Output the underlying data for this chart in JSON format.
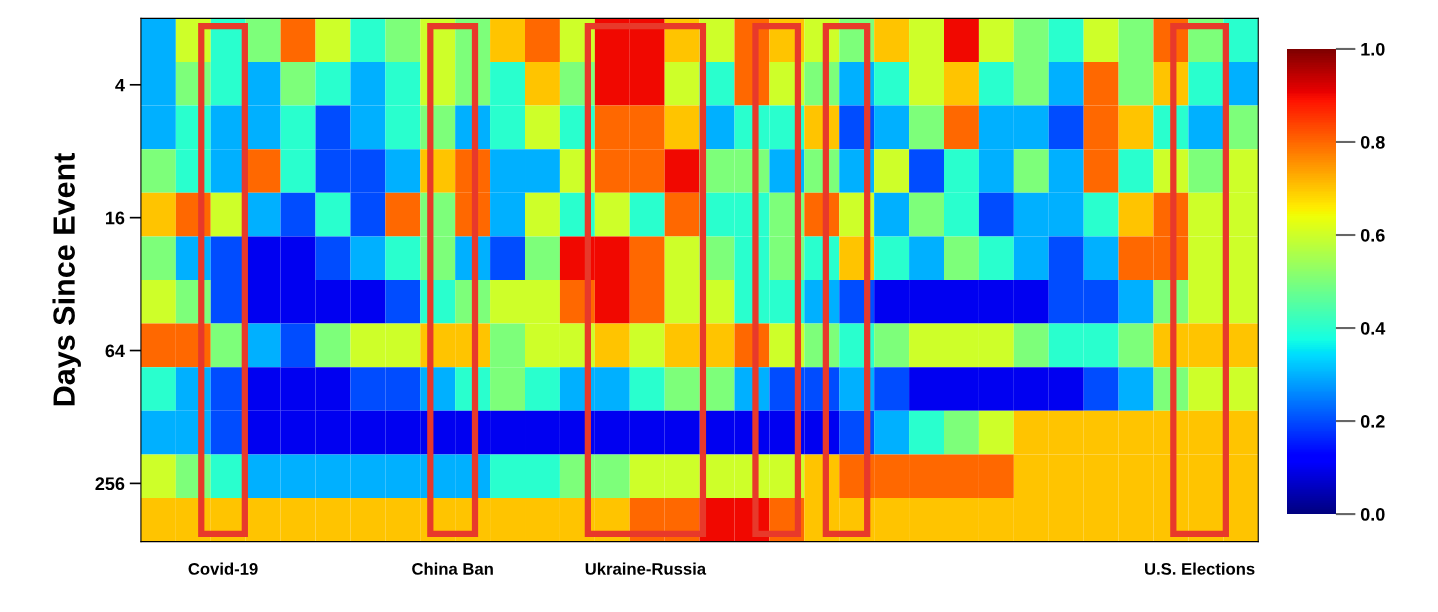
{
  "chart_data": {
    "type": "heatmap",
    "ylabel": "Days Since Event",
    "categories": [
      null,
      null,
      null,
      null,
      null,
      null,
      null,
      null,
      null,
      null,
      null,
      null,
      null,
      null,
      null,
      null,
      null,
      null,
      null,
      null,
      null,
      null,
      null,
      null,
      null,
      null,
      null,
      null,
      null,
      null,
      null,
      null
    ],
    "cells": [
      [
        0.3,
        0.6,
        0.4,
        0.5,
        0.8,
        0.6,
        0.4,
        0.5,
        0.6,
        0.5,
        0.7,
        0.8,
        0.6,
        0.9,
        0.9,
        0.7,
        0.6,
        0.8,
        0.7,
        0.6,
        0.5,
        0.7,
        0.6,
        0.9,
        0.6,
        0.5,
        0.4,
        0.6,
        0.5,
        0.8,
        0.5,
        0.4
      ],
      [
        0.3,
        0.5,
        0.4,
        0.3,
        0.5,
        0.4,
        0.3,
        0.4,
        0.6,
        0.5,
        0.4,
        0.7,
        0.5,
        0.9,
        0.9,
        0.6,
        0.4,
        0.8,
        0.6,
        0.5,
        0.3,
        0.4,
        0.6,
        0.7,
        0.4,
        0.5,
        0.3,
        0.8,
        0.5,
        0.7,
        0.4,
        0.3
      ],
      [
        0.3,
        0.4,
        0.3,
        0.3,
        0.4,
        0.2,
        0.3,
        0.4,
        0.5,
        0.3,
        0.4,
        0.6,
        0.4,
        0.8,
        0.8,
        0.7,
        0.3,
        0.4,
        0.4,
        0.7,
        0.2,
        0.3,
        0.5,
        0.8,
        0.3,
        0.3,
        0.2,
        0.8,
        0.7,
        0.4,
        0.3,
        0.5
      ],
      [
        0.5,
        0.4,
        0.3,
        0.8,
        0.4,
        0.2,
        0.2,
        0.3,
        0.7,
        0.8,
        0.3,
        0.3,
        0.6,
        0.8,
        0.8,
        0.9,
        0.5,
        0.5,
        0.3,
        0.5,
        0.3,
        0.6,
        0.2,
        0.4,
        0.3,
        0.5,
        0.3,
        0.8,
        0.4,
        0.6,
        0.5,
        0.6
      ],
      [
        0.7,
        0.8,
        0.6,
        0.3,
        0.2,
        0.4,
        0.2,
        0.8,
        0.5,
        0.8,
        0.3,
        0.6,
        0.4,
        0.6,
        0.4,
        0.8,
        0.4,
        0.4,
        0.5,
        0.8,
        0.6,
        0.3,
        0.5,
        0.4,
        0.2,
        0.3,
        0.3,
        0.4,
        0.7,
        0.8,
        0.6,
        0.6
      ],
      [
        0.5,
        0.3,
        0.2,
        0.1,
        0.1,
        0.2,
        0.3,
        0.4,
        0.5,
        0.3,
        0.2,
        0.5,
        0.9,
        0.9,
        0.8,
        0.6,
        0.5,
        0.4,
        0.5,
        0.4,
        0.7,
        0.4,
        0.3,
        0.5,
        0.4,
        0.3,
        0.2,
        0.3,
        0.8,
        0.8,
        0.6,
        0.6
      ],
      [
        0.6,
        0.5,
        0.2,
        0.1,
        0.1,
        0.1,
        0.1,
        0.2,
        0.4,
        0.5,
        0.6,
        0.6,
        0.8,
        0.9,
        0.8,
        0.6,
        0.6,
        0.4,
        0.4,
        0.3,
        0.2,
        0.1,
        0.1,
        0.1,
        0.1,
        0.1,
        0.2,
        0.2,
        0.3,
        0.5,
        0.6,
        0.6
      ],
      [
        0.8,
        0.8,
        0.5,
        0.3,
        0.2,
        0.5,
        0.6,
        0.6,
        0.7,
        0.7,
        0.5,
        0.6,
        0.6,
        0.7,
        0.6,
        0.7,
        0.7,
        0.8,
        0.6,
        0.5,
        0.4,
        0.5,
        0.6,
        0.6,
        0.6,
        0.5,
        0.4,
        0.4,
        0.5,
        0.7,
        0.7,
        0.7
      ],
      [
        0.4,
        0.3,
        0.2,
        0.1,
        0.1,
        0.1,
        0.2,
        0.2,
        0.3,
        0.4,
        0.5,
        0.4,
        0.3,
        0.3,
        0.4,
        0.5,
        0.5,
        0.3,
        0.2,
        0.2,
        0.3,
        0.2,
        0.1,
        0.1,
        0.1,
        0.1,
        0.1,
        0.2,
        0.3,
        0.5,
        0.6,
        0.6
      ],
      [
        0.3,
        0.3,
        0.2,
        0.1,
        0.1,
        0.1,
        0.1,
        0.1,
        0.1,
        0.1,
        0.1,
        0.1,
        0.1,
        0.1,
        0.1,
        0.1,
        0.1,
        0.1,
        0.1,
        0.1,
        0.2,
        0.3,
        0.4,
        0.5,
        0.6,
        0.7,
        0.7,
        0.7,
        0.7,
        0.7,
        0.7,
        0.7
      ],
      [
        0.6,
        0.5,
        0.4,
        0.3,
        0.3,
        0.3,
        0.3,
        0.3,
        0.3,
        0.3,
        0.4,
        0.4,
        0.5,
        0.5,
        0.6,
        0.6,
        0.6,
        0.6,
        0.6,
        0.7,
        0.8,
        0.8,
        0.8,
        0.8,
        0.8,
        0.7,
        0.7,
        0.7,
        0.7,
        0.7,
        0.7,
        0.7
      ],
      [
        0.7,
        0.7,
        0.7,
        0.7,
        0.7,
        0.7,
        0.7,
        0.7,
        0.7,
        0.7,
        0.7,
        0.7,
        0.7,
        0.7,
        0.8,
        0.8,
        0.9,
        0.9,
        0.8,
        0.7,
        0.7,
        0.7,
        0.7,
        0.7,
        0.7,
        0.7,
        0.7,
        0.7,
        0.7,
        0.7,
        0.7,
        0.7
      ]
    ],
    "log": "y",
    "ylim": [
      470,
      2
    ],
    "yticks": [
      4,
      16,
      64,
      256
    ],
    "clim": [
      0,
      1
    ],
    "cticks": [
      {
        "value": 0,
        "label": "0.0"
      },
      0.2,
      0.4,
      0.6,
      0.8,
      {
        "value": 1,
        "label": "1.0"
      }
    ],
    "annotations": [
      "Covid-19",
      "China Ban",
      "Ukraine-Russia",
      "U.S. Elections"
    ]
  }
}
